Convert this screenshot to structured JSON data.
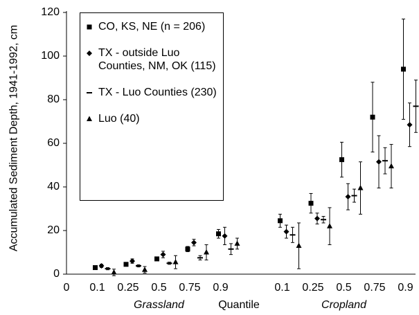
{
  "chart_data": {
    "type": "scatter",
    "y_label": "Accumulated Sediment Depth, 1941-1992, cm",
    "x_label": "Quantile",
    "groups": [
      "Grassland",
      "Cropland"
    ],
    "categories": [
      "0",
      "0.1",
      "0.25",
      "0.5",
      "0.75",
      "0.9",
      null,
      "0.1",
      "0.25",
      "0.5",
      "0.75",
      "0.9"
    ],
    "ylim": [
      0,
      120
    ],
    "yticks": [
      0,
      20,
      40,
      60,
      80,
      100,
      120
    ],
    "series": [
      {
        "name": "CO, KS, NE (n = 206)",
        "marker": "square",
        "color": "#000000",
        "values": [
          null,
          3,
          4.5,
          7,
          11.5,
          18.5,
          null,
          24.5,
          32.5,
          52.5,
          72,
          94
        ],
        "errors": [
          null,
          0.5,
          0.7,
          0.8,
          1.2,
          2,
          null,
          3,
          4.5,
          8,
          16,
          23
        ]
      },
      {
        "name": "TX - outside Luo Counties, NM, OK (115)",
        "marker": "diamond",
        "color": "#000000",
        "values": [
          null,
          3.8,
          6,
          9,
          14.5,
          17.5,
          null,
          19.5,
          25.5,
          35.5,
          51.5,
          68.5
        ],
        "errors": [
          null,
          0.7,
          1,
          1.5,
          1.5,
          4,
          null,
          3,
          2.5,
          6,
          12,
          10
        ]
      },
      {
        "name": "TX - Luo Counties (230)",
        "marker": "dash",
        "color": "#000000",
        "values": [
          null,
          2.5,
          3.8,
          5,
          7.5,
          11.5,
          null,
          18,
          25,
          36,
          52,
          77
        ],
        "errors": [
          null,
          0.5,
          0.5,
          0.5,
          1,
          2.5,
          null,
          3.5,
          1.5,
          3,
          6,
          12
        ]
      },
      {
        "name": "Luo (40)",
        "marker": "triangle",
        "color": "#000000",
        "values": [
          null,
          0.8,
          2,
          5.5,
          10,
          14,
          null,
          13,
          22,
          39.5,
          49.5,
          null
        ],
        "errors": [
          null,
          1.5,
          1.5,
          3,
          3.5,
          2.5,
          null,
          10.5,
          8.5,
          12,
          10,
          null
        ]
      }
    ]
  }
}
